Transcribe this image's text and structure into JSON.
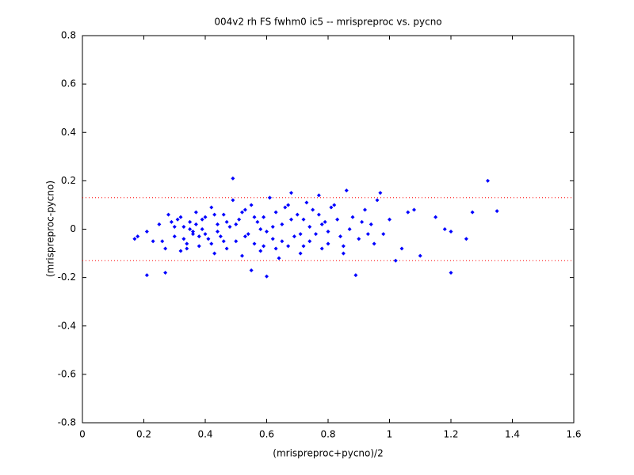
{
  "chart_data": {
    "type": "scatter",
    "title": "004v2 rh FS fwhm0 ic5 -- mrispreproc vs. pycno",
    "x_label": "(mrispreproc+pycno)/2",
    "y_label": "(mrispreproc-pycno)",
    "xlim": [
      0,
      1.6
    ],
    "xticks": [
      0,
      0.2,
      0.4,
      0.6,
      0.8,
      1,
      1.2,
      1.4,
      1.6
    ],
    "ylim": [
      -0.8,
      0.8
    ],
    "yticks": [
      -0.8,
      -0.6,
      -0.4,
      -0.2,
      0,
      0.2,
      0.4,
      0.6,
      0.8
    ],
    "reference_lines": [
      0.13,
      -0.13
    ],
    "reference_color": "#ff0000",
    "color": "#0000ff",
    "x": [
      0.21,
      0.23,
      0.25,
      0.27,
      0.28,
      0.3,
      0.31,
      0.32,
      0.33,
      0.34,
      0.35,
      0.36,
      0.37,
      0.38,
      0.39,
      0.4,
      0.41,
      0.42,
      0.43,
      0.44,
      0.45,
      0.46,
      0.47,
      0.48,
      0.49,
      0.5,
      0.51,
      0.52,
      0.53,
      0.54,
      0.55,
      0.56,
      0.57,
      0.58,
      0.59,
      0.6,
      0.61,
      0.62,
      0.63,
      0.64,
      0.65,
      0.66,
      0.67,
      0.68,
      0.69,
      0.7,
      0.71,
      0.72,
      0.73,
      0.74,
      0.75,
      0.76,
      0.77,
      0.78,
      0.79,
      0.8,
      0.82,
      0.84,
      0.86,
      0.88,
      0.9,
      0.92,
      0.94,
      0.96,
      0.98,
      0.3,
      0.33,
      0.36,
      0.39,
      0.42,
      0.44,
      0.47,
      0.5,
      0.53,
      0.56,
      0.59,
      0.62,
      0.65,
      0.68,
      0.71,
      0.74,
      0.77,
      0.8,
      0.83,
      0.85,
      0.87,
      0.91,
      0.93,
      0.38,
      0.35,
      0.49,
      1.32,
      1.35,
      1.27,
      1.2,
      0.21,
      0.6,
      0.89,
      1.1,
      1.18,
      1.2,
      1.25,
      1.15,
      1.08,
      1.06,
      1.02,
      0.18,
      0.17,
      0.27,
      0.55,
      0.32,
      0.34,
      0.37,
      0.4,
      0.43,
      0.46,
      0.52,
      0.58,
      0.63,
      0.67,
      0.72,
      0.78,
      0.81,
      0.85,
      0.95,
      1.0,
      0.97,
      1.04,
      0.26,
      0.29
    ],
    "y": [
      -0.01,
      -0.05,
      0.02,
      -0.08,
      0.06,
      -0.03,
      0.04,
      -0.09,
      0.01,
      -0.06,
      0.03,
      -0.02,
      0.07,
      -0.07,
      0.0,
      0.05,
      -0.04,
      0.09,
      -0.1,
      0.02,
      -0.03,
      0.06,
      -0.08,
      0.01,
      0.12,
      -0.05,
      0.04,
      -0.11,
      0.08,
      -0.02,
      0.1,
      -0.06,
      0.03,
      -0.09,
      0.05,
      -0.01,
      0.13,
      -0.04,
      0.07,
      -0.12,
      0.02,
      0.09,
      -0.07,
      0.15,
      -0.03,
      0.06,
      -0.1,
      0.04,
      0.11,
      -0.05,
      0.08,
      -0.02,
      0.14,
      -0.08,
      0.03,
      -0.06,
      0.1,
      -0.03,
      0.16,
      0.05,
      -0.04,
      0.08,
      0.02,
      0.12,
      -0.02,
      0.01,
      -0.04,
      -0.01,
      0.04,
      -0.06,
      -0.01,
      0.03,
      0.02,
      -0.03,
      0.05,
      -0.07,
      0.01,
      -0.05,
      0.04,
      -0.02,
      0.01,
      0.06,
      -0.01,
      0.04,
      -0.07,
      0.0,
      0.03,
      -0.02,
      -0.03,
      0.0,
      0.21,
      0.2,
      0.075,
      0.07,
      -0.18,
      -0.19,
      -0.195,
      -0.19,
      -0.11,
      0.0,
      -0.01,
      -0.04,
      0.05,
      0.08,
      0.07,
      -0.13,
      -0.03,
      -0.04,
      -0.18,
      -0.17,
      0.05,
      -0.08,
      0.02,
      -0.02,
      0.06,
      -0.05,
      0.07,
      0.0,
      -0.08,
      0.1,
      -0.07,
      0.02,
      0.09,
      -0.1,
      -0.06,
      0.04,
      0.15,
      -0.08,
      -0.05,
      0.03
    ]
  }
}
